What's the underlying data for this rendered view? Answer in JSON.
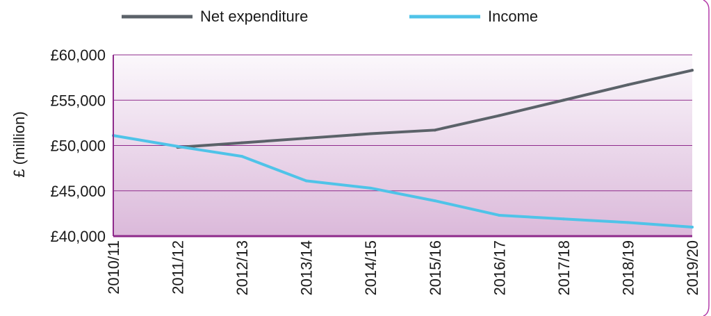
{
  "chart_data": {
    "type": "line",
    "categories": [
      "2010/11",
      "2011/12",
      "2012/13",
      "2013/14",
      "2014/15",
      "2015/16",
      "2016/17",
      "2017/18",
      "2018/19",
      "2019/20"
    ],
    "series": [
      {
        "name": "Net expenditure",
        "color": "#5b6269",
        "values": [
          null,
          49800,
          50300,
          50800,
          51300,
          51700,
          53300,
          55000,
          56700,
          58300
        ]
      },
      {
        "name": "Income",
        "color": "#4fc3e8",
        "values": [
          51100,
          49900,
          48800,
          46100,
          45300,
          43900,
          42300,
          41900,
          41500,
          41000
        ]
      }
    ],
    "ylabel": "£ (million)",
    "ylim": [
      40000,
      60000
    ],
    "yticks": [
      40000,
      45000,
      50000,
      55000,
      60000
    ],
    "ytick_labels": [
      "£40,000",
      "£45,000",
      "£50,000",
      "£55,000",
      "£60,000"
    ],
    "grid": true,
    "legend_position": "top"
  }
}
